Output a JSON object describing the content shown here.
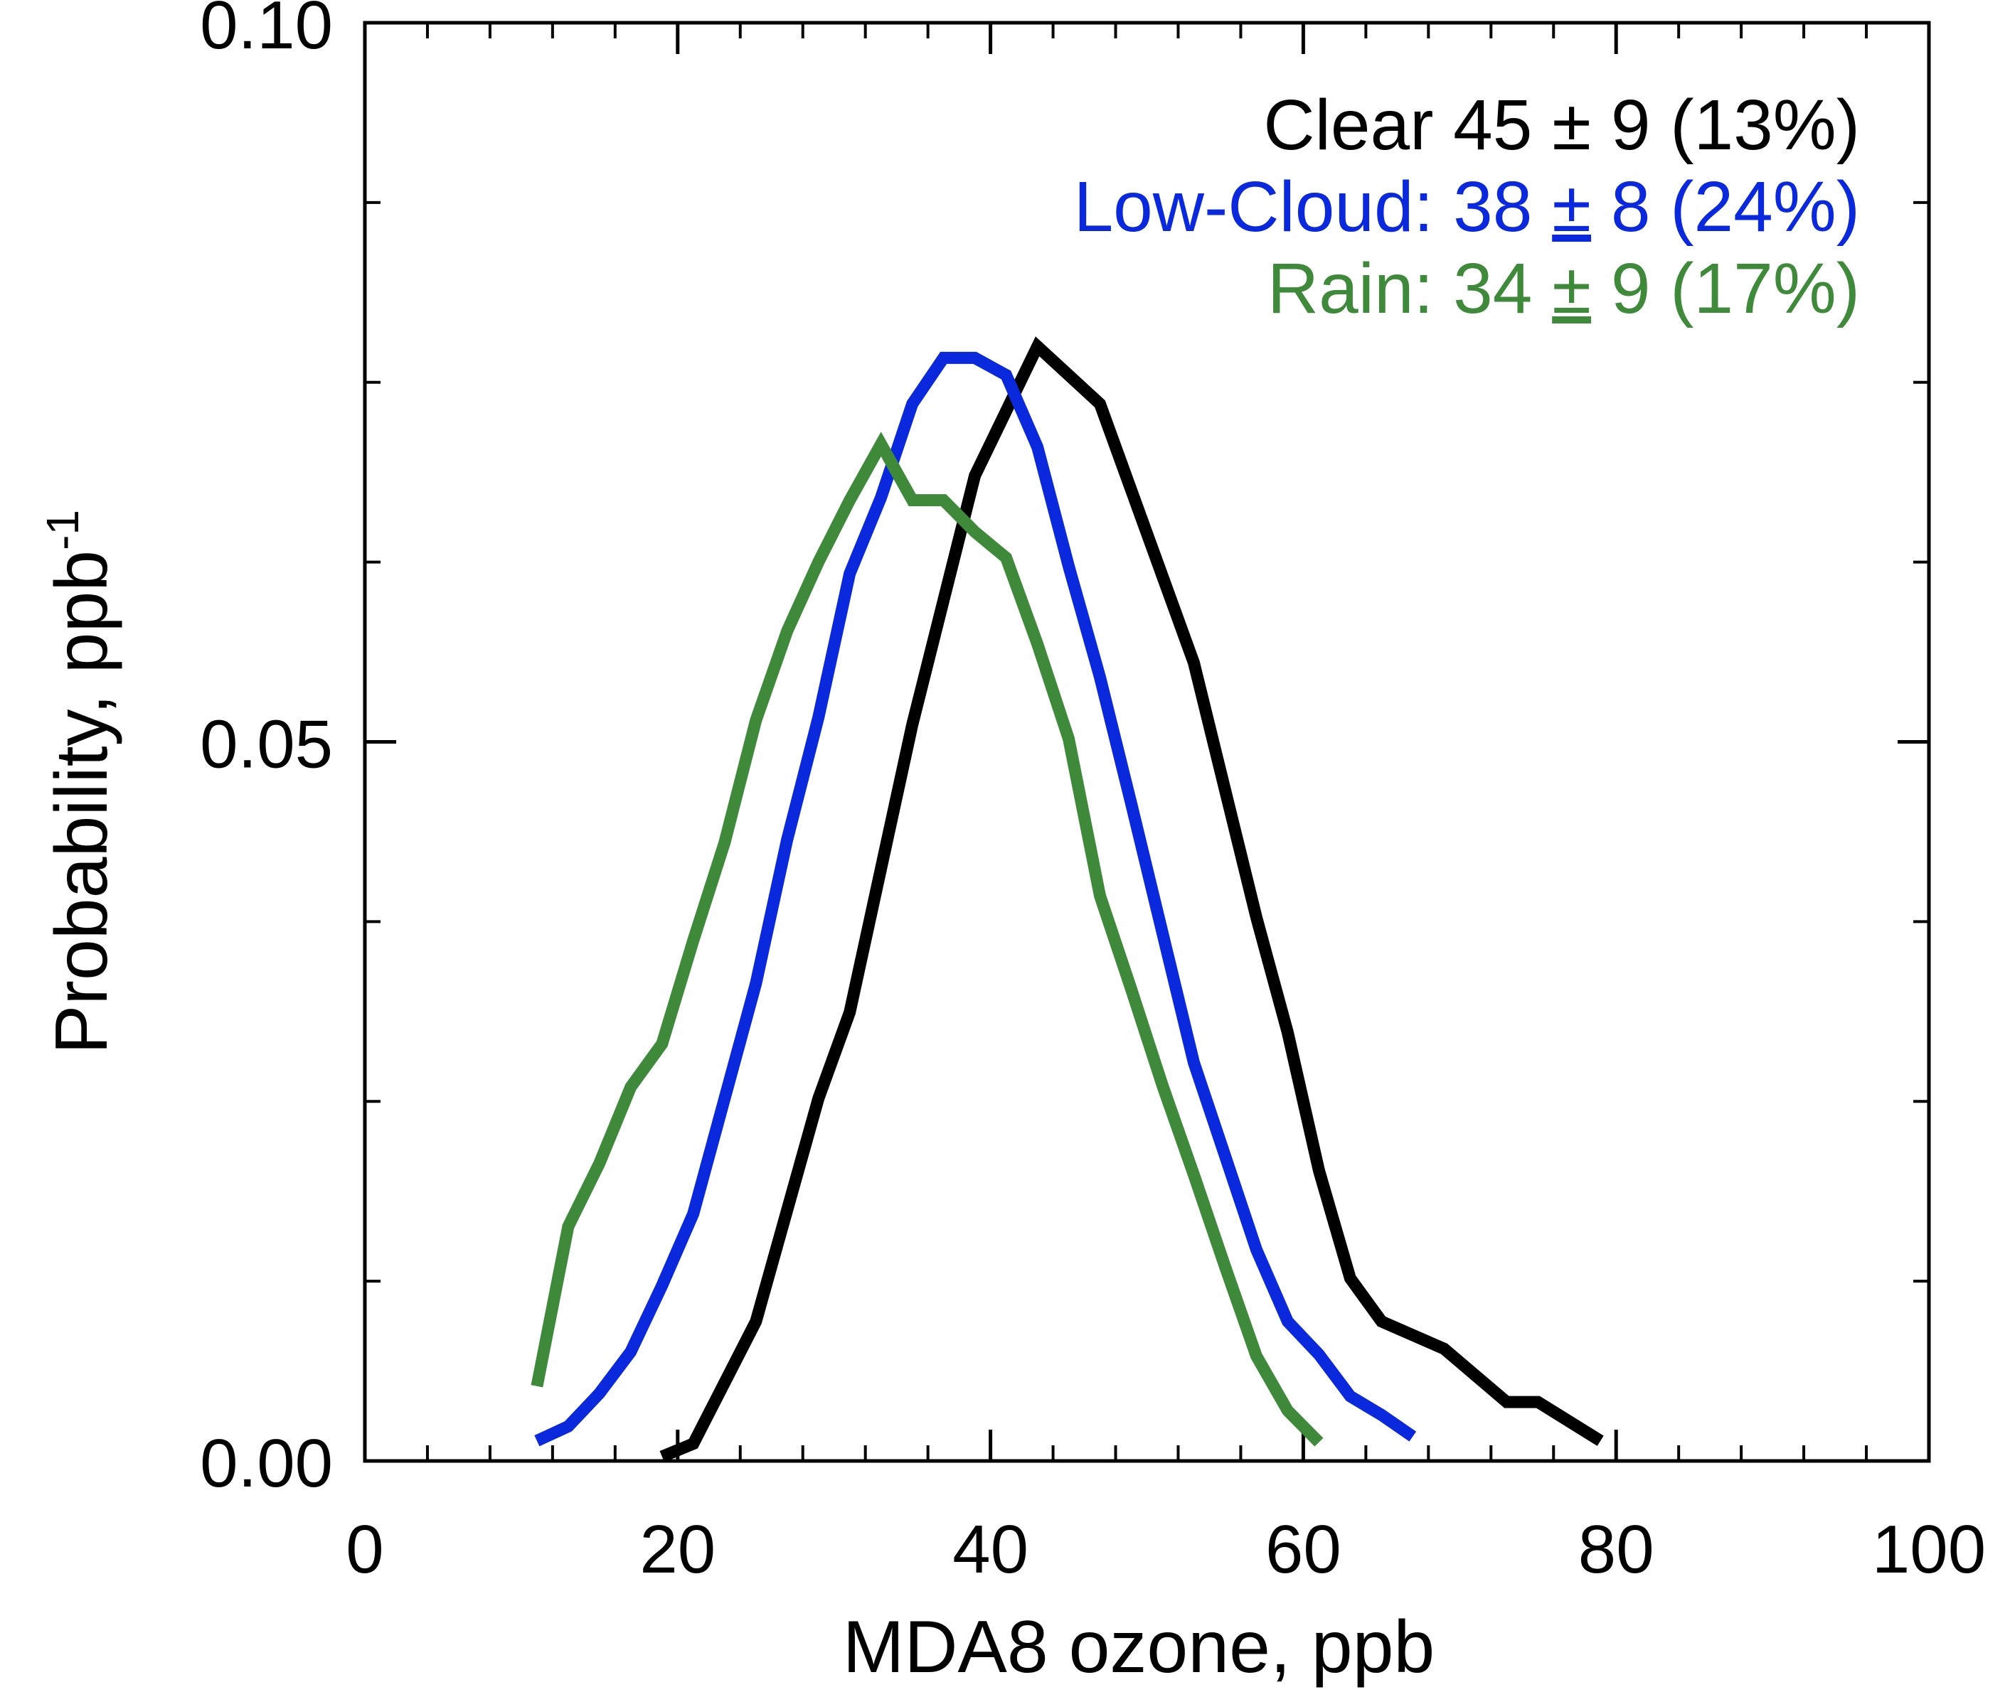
{
  "chart_data": {
    "type": "line",
    "xlabel": "MDA8 ozone, ppb",
    "ylabel": "Probability, ppb",
    "ylabel_sup": "-1",
    "xlim": [
      0,
      100
    ],
    "ylim": [
      0,
      0.1
    ],
    "x_ticks": [
      0,
      20,
      40,
      60,
      80,
      100
    ],
    "x_tick_labels": [
      "0",
      "20",
      "40",
      "60",
      "80",
      "100"
    ],
    "x_minor_step": 4,
    "y_ticks": [
      0,
      0.05,
      0.1
    ],
    "y_tick_labels": [
      "0.00",
      "0.05",
      "0.10"
    ],
    "y_minor_step": 0.0125,
    "grid": false,
    "legend_position": "top-right",
    "series": [
      {
        "name": "Clear",
        "stat": "45",
        "pm": "±",
        "sd": "9",
        "frac": "(13%)",
        "color": "#000000",
        "label_color": "#000000",
        "x": [
          19,
          21,
          25,
          29,
          31,
          35,
          39,
          43,
          47,
          53,
          57,
          59,
          61,
          63,
          65,
          69,
          73,
          75,
          79
        ],
        "y": [
          0.0003,
          0.0012,
          0.0097,
          0.0252,
          0.0312,
          0.0512,
          0.0685,
          0.0775,
          0.0735,
          0.0555,
          0.0378,
          0.0298,
          0.0202,
          0.0127,
          0.0097,
          0.0078,
          0.0041,
          0.0041,
          0.0014
        ]
      },
      {
        "name": "Low-Cloud:",
        "stat": "38",
        "pm": "±",
        "sd": "8",
        "frac": "(24%)",
        "color": "#0a28dc",
        "label_color": "#0a28dc",
        "x": [
          11,
          13,
          15,
          17,
          19,
          21,
          23,
          25,
          27,
          29,
          31,
          33,
          35,
          37,
          39,
          41,
          43,
          45,
          47,
          49,
          51,
          53,
          55,
          57,
          59,
          61,
          63,
          65,
          67
        ],
        "y": [
          0.0014,
          0.0024,
          0.0047,
          0.0076,
          0.0122,
          0.0172,
          0.0252,
          0.0332,
          0.0432,
          0.0517,
          0.0617,
          0.067,
          0.0735,
          0.0767,
          0.0767,
          0.0755,
          0.0705,
          0.0622,
          0.0545,
          0.0457,
          0.0367,
          0.0277,
          0.0212,
          0.0147,
          0.0097,
          0.0074,
          0.0045,
          0.0032,
          0.0017
        ]
      },
      {
        "name": "Rain:",
        "stat": "34",
        "pm": "±",
        "sd": "9",
        "frac": "(17%)",
        "color": "#3e8a3a",
        "label_color": "#3e8a3a",
        "x": [
          11,
          13,
          15,
          17,
          19,
          21,
          23,
          25,
          27,
          29,
          31,
          33,
          35,
          37,
          39,
          41,
          43,
          45,
          47,
          49,
          51,
          53,
          55,
          57,
          59,
          61
        ],
        "y": [
          0.0052,
          0.0163,
          0.0207,
          0.026,
          0.029,
          0.0362,
          0.043,
          0.0515,
          0.0577,
          0.0625,
          0.0668,
          0.0707,
          0.0668,
          0.0668,
          0.0646,
          0.0628,
          0.0568,
          0.0502,
          0.0393,
          0.0328,
          0.0261,
          0.0199,
          0.0135,
          0.0073,
          0.0035,
          0.0013
        ]
      }
    ]
  }
}
